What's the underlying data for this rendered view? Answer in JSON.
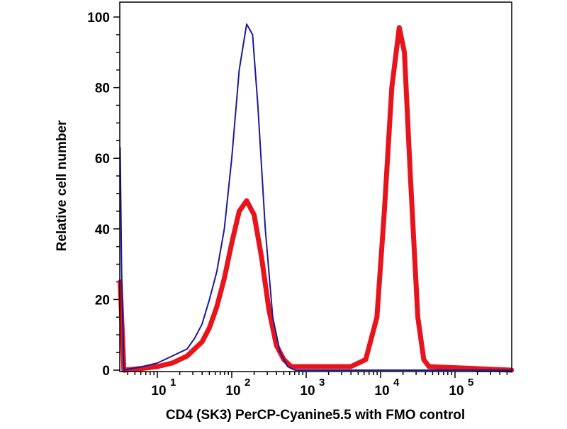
{
  "chart_data": {
    "type": "line",
    "title": "",
    "xlabel": "CD4 (SK3) PerCP-Cyanine5.5 with FMO control",
    "ylabel": "Relative cell number",
    "x_scale": "log",
    "xlim_log10": [
      0.5,
      5.76
    ],
    "ylim": [
      0,
      104
    ],
    "y_ticks": [
      0,
      20,
      40,
      60,
      80,
      100
    ],
    "x_ticks": [
      {
        "base": "10",
        "exp": "1",
        "log10": 1
      },
      {
        "base": "10",
        "exp": "2",
        "log10": 2
      },
      {
        "base": "10",
        "exp": "3",
        "log10": 3
      },
      {
        "base": "10",
        "exp": "4",
        "log10": 4
      },
      {
        "base": "10",
        "exp": "5",
        "log10": 5
      }
    ],
    "grid": false,
    "series": [
      {
        "name": "FMO control",
        "color": "#1a1a9a",
        "x_log10": [
          0.5,
          0.52,
          0.55,
          0.8,
          1.0,
          1.2,
          1.4,
          1.5,
          1.6,
          1.7,
          1.8,
          1.9,
          2.0,
          2.1,
          2.2,
          2.28,
          2.35,
          2.45,
          2.55,
          2.65,
          2.75,
          2.85,
          5.76
        ],
        "y": [
          63,
          28,
          0,
          1,
          2,
          4,
          6,
          9,
          13,
          20,
          28,
          40,
          60,
          85,
          98,
          95,
          75,
          40,
          15,
          5,
          1,
          0,
          0
        ]
      },
      {
        "name": "CD4 (SK3) PerCP-Cyanine5.5",
        "color": "#e8141c",
        "x_log10": [
          0.5,
          0.55,
          0.8,
          1.0,
          1.2,
          1.4,
          1.6,
          1.7,
          1.8,
          1.9,
          2.0,
          2.1,
          2.2,
          2.3,
          2.4,
          2.5,
          2.6,
          2.7,
          2.8,
          3.0,
          3.4,
          3.6,
          3.8,
          3.95,
          4.05,
          4.15,
          4.25,
          4.32,
          4.4,
          4.5,
          4.58,
          4.65,
          5.76
        ],
        "y": [
          25,
          0,
          0.5,
          1,
          2,
          4,
          8,
          12,
          18,
          26,
          36,
          45,
          48,
          44,
          32,
          17,
          7,
          3,
          1,
          1,
          1,
          1,
          3,
          15,
          45,
          80,
          97,
          90,
          55,
          15,
          3,
          1,
          0
        ]
      }
    ]
  }
}
